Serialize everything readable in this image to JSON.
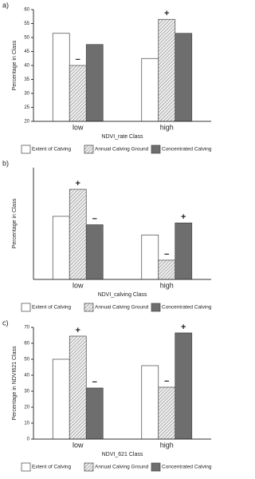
{
  "chart_data": [
    {
      "type": "bar",
      "label": "a)",
      "xlabel": "NDVI_rate Class",
      "ylabel": "Percentage in Class",
      "categories": [
        "low",
        "high"
      ],
      "series": [
        {
          "name": "Extent of Calving",
          "color": "#ffffff",
          "values": [
            51.5,
            42.5
          ]
        },
        {
          "name": "Annual Calving Ground",
          "color": "#d0d0d0",
          "hatch": true,
          "values": [
            40,
            56.5
          ]
        },
        {
          "name": "Concentrated Calving",
          "color": "#6e6e6e",
          "values": [
            47.5,
            51.5
          ]
        }
      ],
      "ylim": [
        20,
        60
      ],
      "yticks": [
        20,
        25,
        30,
        35,
        40,
        45,
        50,
        55,
        60
      ],
      "annotations": [
        {
          "text": "−",
          "category": 0,
          "series": 1
        },
        {
          "text": "+",
          "category": 1,
          "series": 1
        }
      ]
    },
    {
      "type": "bar",
      "label": "b)",
      "xlabel": "NDVI_calving Class",
      "ylabel": "Percentage in Class",
      "categories": [
        "low",
        "high"
      ],
      "series": [
        {
          "name": "Extent of Calving",
          "color": "#ffffff",
          "values": [
            52.5,
            37
          ]
        },
        {
          "name": "Annual Calving Ground",
          "color": "#d0d0d0",
          "hatch": true,
          "values": [
            75,
            16
          ]
        },
        {
          "name": "Concentrated Calving",
          "color": "#6e6e6e",
          "values": [
            45.5,
            47
          ]
        }
      ],
      "ylim": [
        0,
        93
      ],
      "annotations": [
        {
          "text": "+",
          "category": 0,
          "series": 1
        },
        {
          "text": "−",
          "category": 0,
          "series": 2
        },
        {
          "text": "−",
          "category": 1,
          "series": 1
        },
        {
          "text": "+",
          "category": 1,
          "series": 2
        }
      ]
    },
    {
      "type": "bar",
      "label": "c)",
      "xlabel": "NDVI_621 Class",
      "ylabel": "Percentage in NDVI621 Class",
      "categories": [
        "low",
        "high"
      ],
      "series": [
        {
          "name": "Extent of Calving",
          "color": "#ffffff",
          "values": [
            50,
            46
          ]
        },
        {
          "name": "Annual Calving Ground",
          "color": "#d0d0d0",
          "hatch": true,
          "values": [
            64.5,
            32.5
          ]
        },
        {
          "name": "Concentrated Calving",
          "color": "#6e6e6e",
          "values": [
            32,
            66.5
          ]
        }
      ],
      "ylim": [
        0,
        70
      ],
      "yticks": [
        0,
        10,
        20,
        30,
        40,
        50,
        60,
        70
      ],
      "annotations": [
        {
          "text": "+",
          "category": 0,
          "series": 1
        },
        {
          "text": "−",
          "category": 0,
          "series": 2
        },
        {
          "text": "−",
          "category": 1,
          "series": 1
        },
        {
          "text": "+",
          "category": 1,
          "series": 2
        }
      ]
    }
  ]
}
